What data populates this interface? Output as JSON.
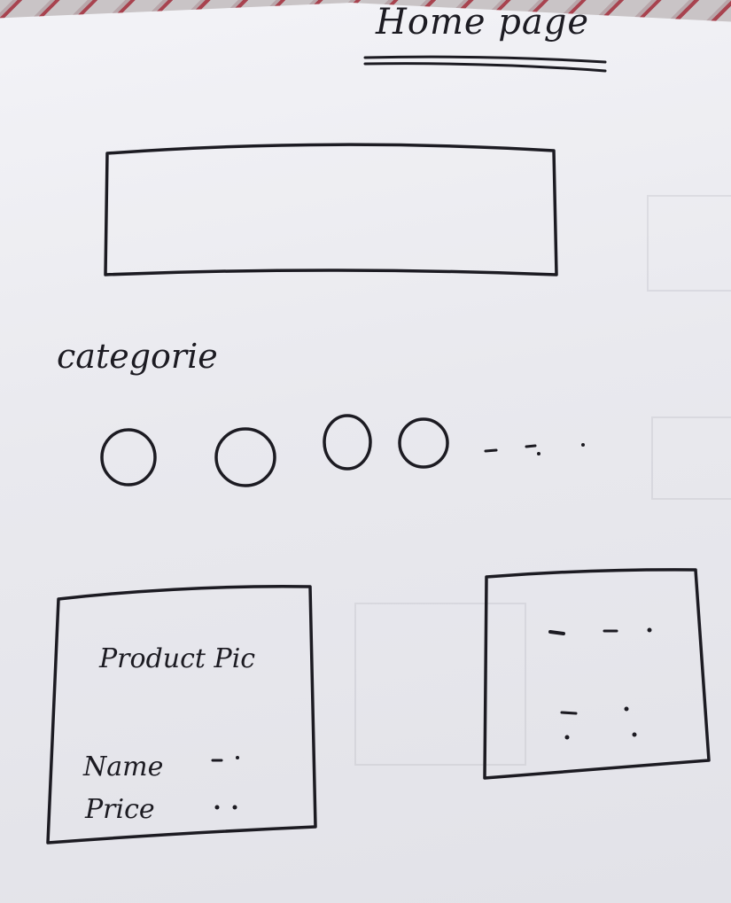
{
  "sketch": {
    "title": "Home page",
    "categories_label": "categorie",
    "category_circles": 4,
    "product_card": {
      "title": "Product Pic",
      "name_label": "Name",
      "price_label": "Price"
    }
  }
}
